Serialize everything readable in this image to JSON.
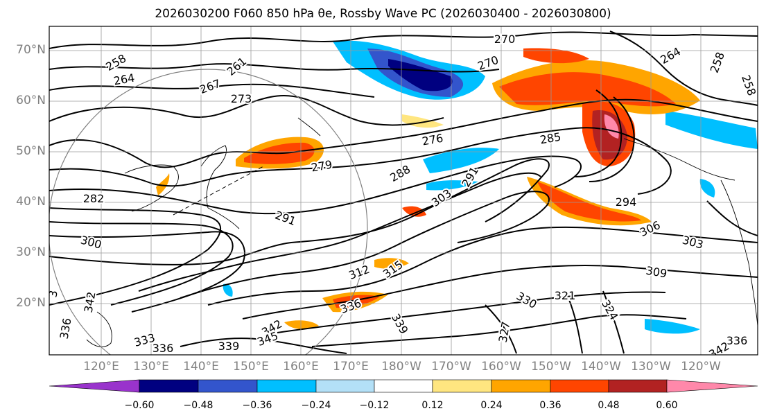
{
  "title": "2026030200 F060 850 hPa θe, Rossby Wave PC (2026030400 - 2026030800)",
  "lat_labels": [
    "70°N",
    "60°N",
    "50°N",
    "40°N",
    "30°N",
    "20°N"
  ],
  "lon_labels": [
    "120°E",
    "130°E",
    "140°E",
    "150°E",
    "160°E",
    "170°E",
    "180°W",
    "170°W",
    "160°W",
    "150°W",
    "140°W",
    "130°W",
    "120°W"
  ],
  "colorbar": {
    "ticks": [
      "−0.60",
      "−0.48",
      "−0.36",
      "−0.24",
      "−0.12",
      "0.12",
      "0.24",
      "0.36",
      "0.48",
      "0.60"
    ],
    "colors": [
      "#9933cc",
      "#000080",
      "#3355cc",
      "#00bfff",
      "#b3e0f7",
      "#ffffff",
      "#ffe680",
      "#ffa500",
      "#ff4500",
      "#b22222",
      "#ff88aa"
    ]
  },
  "contour_labels": [
    "258",
    "261",
    "264",
    "267",
    "273",
    "270",
    "270",
    "264",
    "258",
    "258",
    "276",
    "279",
    "285",
    "288",
    "291",
    "291",
    "303",
    "282",
    "300",
    "294",
    "306",
    "303",
    "309",
    "312",
    "315",
    "321",
    "324",
    "327",
    "330",
    "336",
    "336",
    "339",
    "342",
    "342",
    "345",
    "339",
    "336",
    "333",
    "336",
    "342",
    "3"
  ],
  "legend_colors": {
    "land": "#000000",
    "grid": "#9a9a9a"
  }
}
